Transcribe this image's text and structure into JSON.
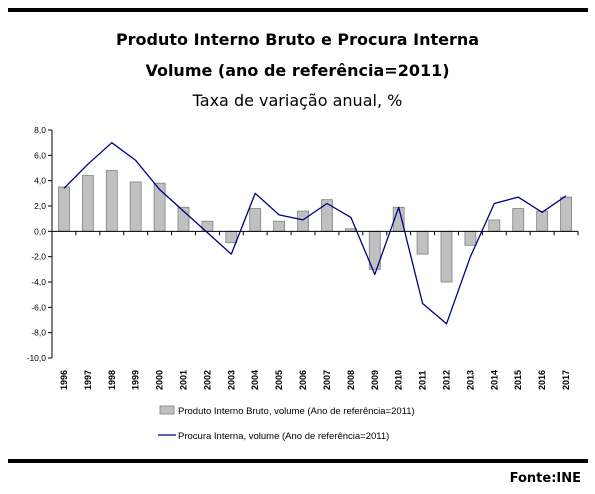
{
  "header": {
    "title_line1": "Produto Interno Bruto e Procura Interna",
    "title_line2": "Volume (ano de referência=2011)",
    "subtitle": "Taxa de variação anual, %"
  },
  "footer": {
    "source": "Fonte:INE"
  },
  "colors": {
    "bar_fill": "#c0c0c0",
    "bar_stroke": "#808080",
    "line": "#000080",
    "axis": "#000000"
  },
  "chart_data": {
    "type": "bar",
    "title": "Produto Interno Bruto e Procura Interna",
    "subtitle": "Taxa de variação anual, %",
    "categories": [
      "1996",
      "1997",
      "1998",
      "1999",
      "2000",
      "2001",
      "2002",
      "2003",
      "2004",
      "2005",
      "2006",
      "2007",
      "2008",
      "2009",
      "2010",
      "2011",
      "2012",
      "2013",
      "2014",
      "2015",
      "2016",
      "2017"
    ],
    "ylim": [
      -10,
      8
    ],
    "yticks": [
      8,
      6,
      4,
      2,
      0,
      -2,
      -4,
      -6,
      -8,
      -10
    ],
    "ytick_labels": [
      "8,0",
      "6,0",
      "4,0",
      "2,0",
      "0,0",
      "-2,0",
      "-4,0",
      "-6,0",
      "-8,0",
      "-10,0"
    ],
    "grid": false,
    "legend_position": "bottom",
    "series": [
      {
        "name": "Produto Interno Bruto, volume (Ano de referência=2011)",
        "type": "bar",
        "values": [
          3.5,
          4.4,
          4.8,
          3.9,
          3.8,
          1.9,
          0.8,
          -0.9,
          1.8,
          0.8,
          1.6,
          2.5,
          0.2,
          -3.0,
          1.9,
          -1.8,
          -4.0,
          -1.1,
          0.9,
          1.8,
          1.6,
          2.7
        ]
      },
      {
        "name": "Procura Interna, volume (Ano de referência=2011)",
        "type": "line",
        "values": [
          3.4,
          5.3,
          7.0,
          5.6,
          3.3,
          1.6,
          -0.1,
          -1.8,
          3.0,
          1.3,
          0.9,
          2.2,
          1.1,
          -3.4,
          1.9,
          -5.7,
          -7.3,
          -2.0,
          2.2,
          2.7,
          1.5,
          2.8
        ]
      }
    ]
  }
}
